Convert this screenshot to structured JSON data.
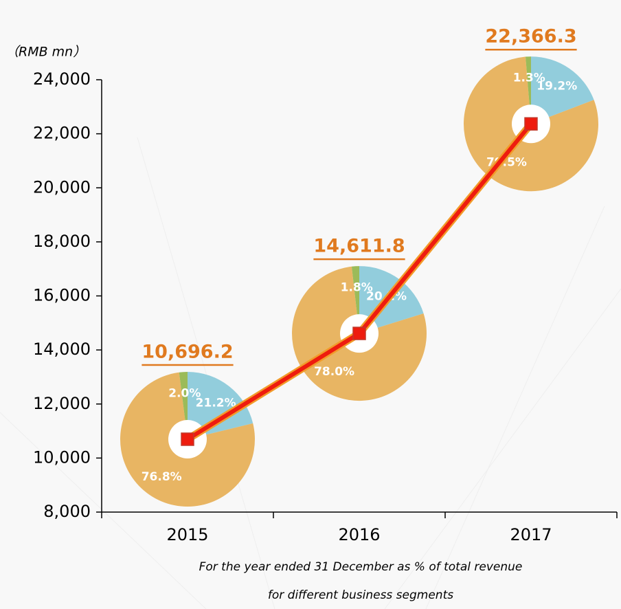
{
  "chart_data": {
    "type": "line",
    "y_label": "（RMB mn）",
    "notes": [
      "For the year ended 31 December as % of total revenue",
      "for different business segments"
    ],
    "categories": [
      "2015",
      "2016",
      "2017"
    ],
    "series": [
      {
        "color": "#ee1c0e",
        "values": [
          10696.2,
          14611.8,
          22366.3
        ],
        "value_labels": [
          "10,696.2",
          "14,611.8",
          "22,366.3"
        ]
      }
    ],
    "pie_colors": [
      "#92cddc",
      "#e8b563",
      "#9bbb59"
    ],
    "pies": [
      {
        "values": [
          21.2,
          76.8,
          2.0
        ],
        "value_labels": [
          "21.2%",
          "76.8%",
          "2.0%"
        ]
      },
      {
        "values": [
          20.2,
          78.0,
          1.8
        ],
        "value_labels": [
          "20.2%",
          "78.0%",
          "1.8%"
        ]
      },
      {
        "values": [
          19.2,
          79.5,
          1.3
        ],
        "value_labels": [
          "19.2%",
          "79.5%",
          "1.3%"
        ]
      }
    ],
    "ylim": [
      8000,
      24000
    ],
    "yticks": [
      {
        "value": 8000,
        "label": "8,000"
      },
      {
        "value": 10000,
        "label": "10,000"
      },
      {
        "value": 12000,
        "label": "12,000"
      },
      {
        "value": 14000,
        "label": "14,000"
      },
      {
        "value": 16000,
        "label": "16,000"
      },
      {
        "value": 18000,
        "label": "18,000"
      },
      {
        "value": 20000,
        "label": "20,000"
      },
      {
        "value": 22000,
        "label": "22,000"
      },
      {
        "value": 24000,
        "label": "24,000"
      }
    ]
  }
}
